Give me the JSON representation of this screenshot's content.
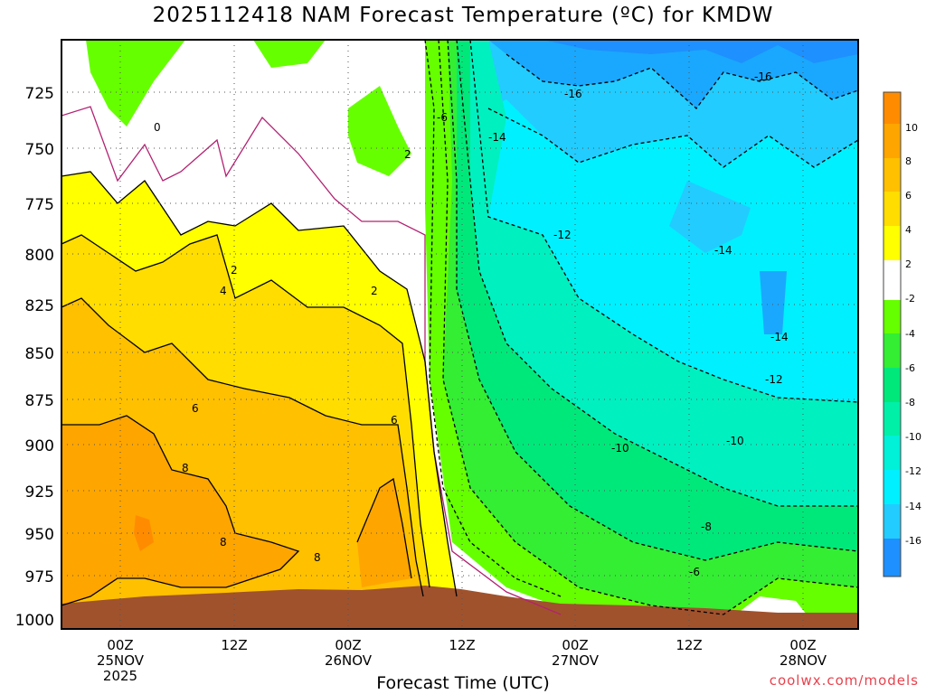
{
  "title": "2025112418 NAM Forecast Temperature (ºC) for KMDW",
  "x_axis_title": "Forecast Time (UTC)",
  "credit": "coolwx.com/models",
  "y_axis": {
    "ticks": [
      "725",
      "750",
      "775",
      "800",
      "825",
      "850",
      "875",
      "900",
      "925",
      "950",
      "975",
      "1000"
    ]
  },
  "x_axis": {
    "ticks": [
      {
        "line1": "00Z",
        "line2": "25NOV",
        "line3": "2025"
      },
      {
        "line1": "12Z",
        "line2": "",
        "line3": ""
      },
      {
        "line1": "00Z",
        "line2": "26NOV",
        "line3": ""
      },
      {
        "line1": "12Z",
        "line2": "",
        "line3": ""
      },
      {
        "line1": "00Z",
        "line2": "27NOV",
        "line3": ""
      },
      {
        "line1": "12Z",
        "line2": "",
        "line3": ""
      },
      {
        "line1": "00Z",
        "line2": "28NOV",
        "line3": ""
      }
    ]
  },
  "colorbar": {
    "labels": [
      "10",
      "8",
      "6",
      "4",
      "2",
      "-2",
      "-4",
      "-6",
      "-8",
      "-10",
      "-12",
      "-14",
      "-16"
    ],
    "colors": [
      "#ff8c00",
      "#ffa500",
      "#ffc000",
      "#ffdd00",
      "#ffff00",
      "#ffffff",
      "#66ff00",
      "#33ee33",
      "#00e87a",
      "#00f0c0",
      "#00f0ff",
      "#22ccff",
      "#1aa8ff",
      "#1e90ff"
    ]
  },
  "contour_labels": [
    "0",
    "2",
    "2",
    "2",
    "4",
    "6",
    "6",
    "8",
    "8",
    "8",
    "-6",
    "-6",
    "-8",
    "-10",
    "-10",
    "-12",
    "-12",
    "-14",
    "-14",
    "-14",
    "-16",
    "-16"
  ],
  "colors": {
    "terrain": "#a0522d",
    "zero_line": "#b22272",
    "credit": "#e8424d"
  }
}
